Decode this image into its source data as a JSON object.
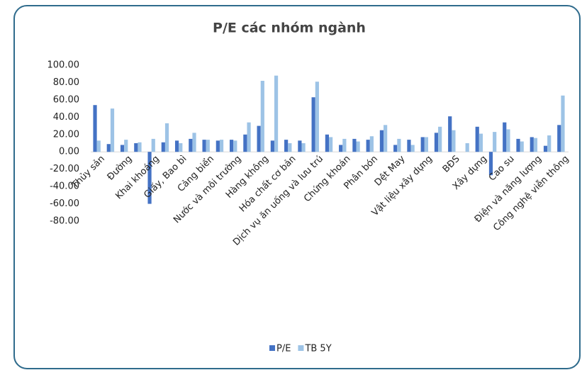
{
  "chart_data": {
    "type": "bar",
    "title": "P/E các nhóm ngành",
    "categories": [
      "Thủy sản",
      null,
      "Đường",
      null,
      "Khai khoáng",
      null,
      "Giấy, Bao bì",
      null,
      "Cảng biển",
      null,
      "Nước và môi trường",
      null,
      "Hàng không",
      null,
      "Hóa chất cơ bản",
      null,
      "Dịch vụ ăn uống và lưu trú",
      null,
      "Chứng khoán",
      null,
      "Phân bón",
      null,
      "Dệt May",
      null,
      "Vật liệu xây dựng",
      null,
      "BĐS",
      null,
      "Xây dựng",
      null,
      "Cao su",
      null,
      "Điện và năng lượng",
      null,
      "Công nghệ viễn thông"
    ],
    "series": [
      {
        "name": "P/E",
        "color": "#4472c4",
        "values": [
          54,
          9,
          8,
          10,
          -60,
          11,
          13,
          15,
          14,
          13,
          14,
          20,
          30,
          13,
          14,
          13,
          63,
          20,
          8,
          15,
          14,
          25,
          8,
          14,
          17,
          22,
          41,
          null,
          29,
          -27,
          34,
          15,
          17,
          7,
          31
        ]
      },
      {
        "name": "TB 5Y",
        "color": "#9dc3e6",
        "values": [
          13,
          50,
          14,
          11,
          15,
          33,
          10,
          22,
          14,
          14,
          13,
          34,
          82,
          88,
          10,
          10,
          81,
          17,
          15,
          12,
          18,
          31,
          15,
          8,
          17,
          29,
          25,
          10,
          21,
          23,
          26,
          12,
          16,
          19,
          65
        ]
      }
    ],
    "ylim": [
      -80,
      100
    ],
    "yticks": [
      {
        "value": -80,
        "label": "-80.00"
      },
      {
        "value": -60,
        "label": "-60.00"
      },
      {
        "value": -40,
        "label": "-40.00"
      },
      {
        "value": -20,
        "label": "-20.00"
      },
      {
        "value": 0,
        "label": "0.00"
      },
      {
        "value": 20,
        "label": "20.00"
      },
      {
        "value": 40,
        "label": "40.00"
      },
      {
        "value": 60,
        "label": "60.00"
      },
      {
        "value": 80,
        "label": "80.00"
      },
      {
        "value": 100,
        "label": "100.00"
      }
    ],
    "legend": "bottom"
  }
}
